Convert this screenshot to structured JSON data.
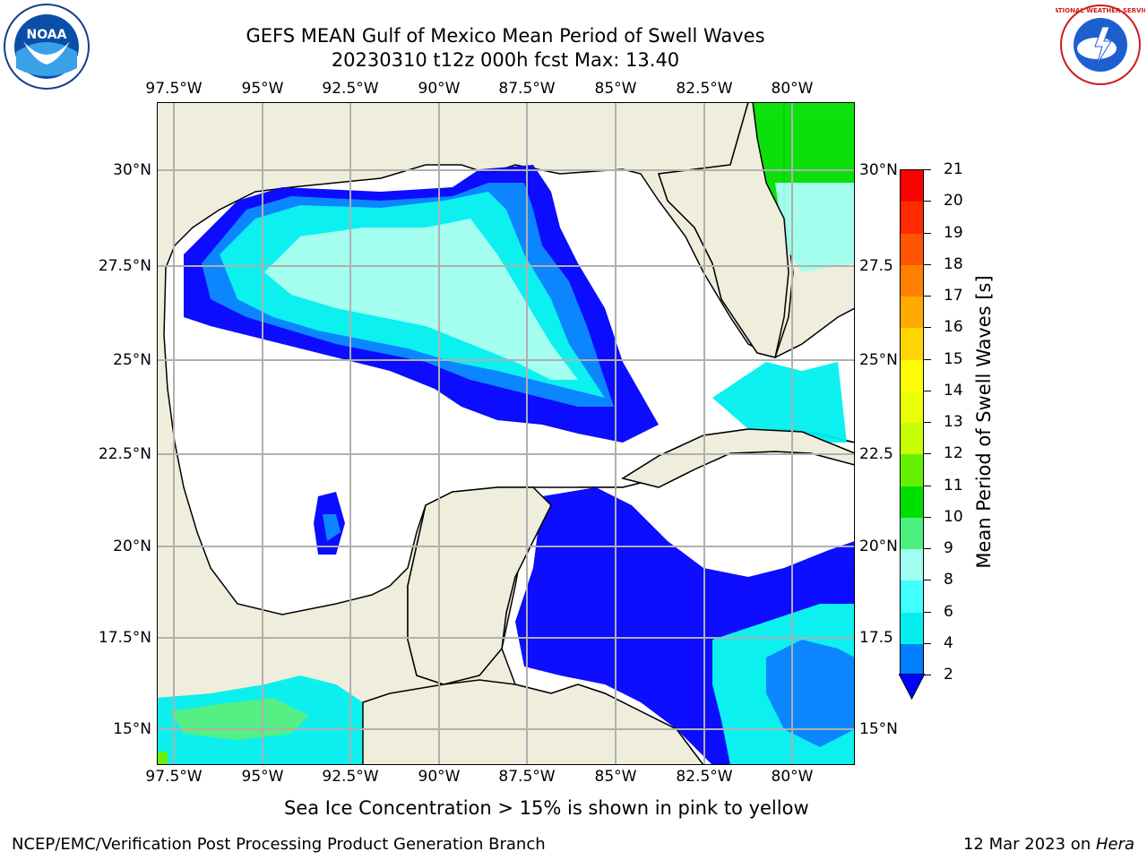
{
  "title": {
    "line1": "GEFS MEAN Gulf of Mexico Mean Period of Swell Waves",
    "line2": "20230310 t12z 000h fcst   Max: 13.40"
  },
  "axes": {
    "lon_labels": [
      "97.5°W",
      "95°W",
      "92.5°W",
      "90°W",
      "87.5°W",
      "85°W",
      "82.5°W",
      "80°W"
    ],
    "lat_labels_left": [
      "30°N",
      "27.5°N",
      "25°N",
      "22.5°N",
      "20°N",
      "17.5°N",
      "15°N"
    ],
    "lat_labels_right": [
      "30°N",
      "27.5",
      "25°N",
      "22.5",
      "20°N",
      "17.5",
      "15°N"
    ]
  },
  "colorbar": {
    "label": "Mean Period of Swell Waves [s]",
    "ticks": [
      "21",
      "20",
      "19",
      "18",
      "17",
      "16",
      "15",
      "14",
      "13",
      "12",
      "11",
      "10",
      "9",
      "8",
      "6",
      "4",
      "2"
    ],
    "colors": [
      "#ff0000",
      "#ff2a00",
      "#ff5500",
      "#ff8000",
      "#ffaa00",
      "#ffd400",
      "#ffff00",
      "#eaff00",
      "#c8ff00",
      "#64f000",
      "#00e000",
      "#4df080",
      "#a0fff0",
      "#40ffff",
      "#00f0f0",
      "#0080ff",
      "#0000ff"
    ]
  },
  "caption": "Sea Ice Concentration > 15% is shown in pink to yellow",
  "footer": {
    "left": "NCEP/EMC/Verification Post Processing Product Generation Branch",
    "right_date": "12 Mar 2023 on ",
    "right_host": "Hera"
  },
  "logos": {
    "left_text": "NOAA",
    "right_text": "NATIONAL WEATHER SERVICE"
  }
}
